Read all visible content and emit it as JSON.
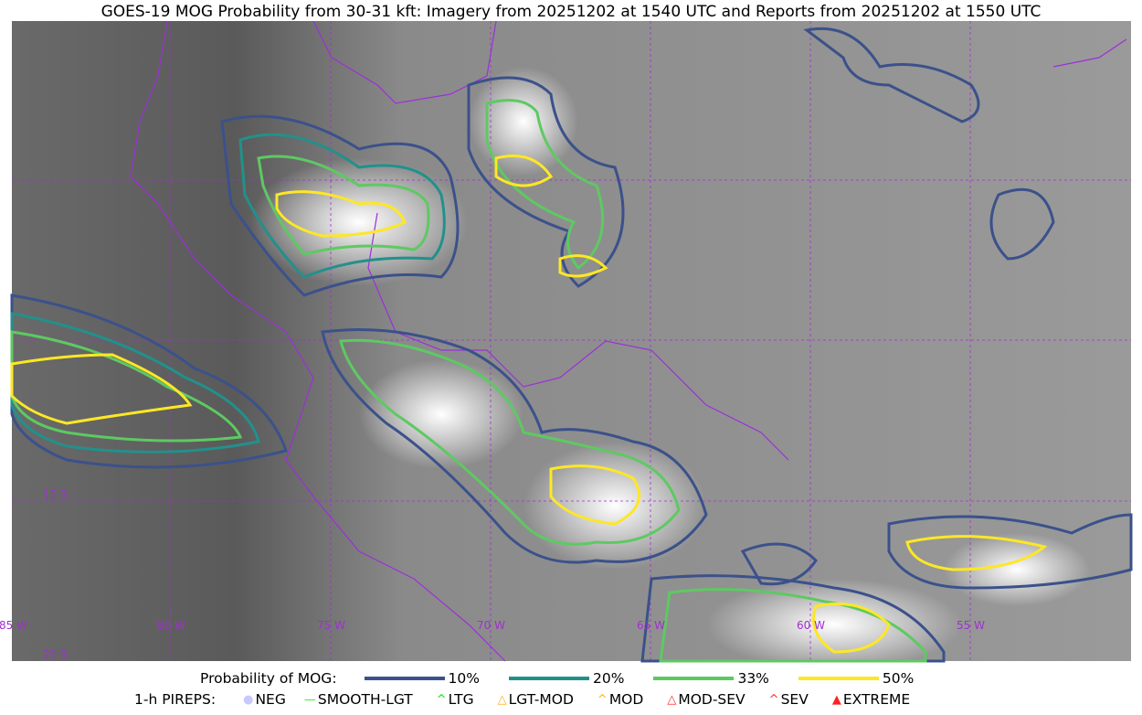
{
  "title": "GOES-19 MOG Probability from 30-31 kft: Imagery from 20251202 at 1540 UTC and Reports from 20251202 at 1550 UTC",
  "map": {
    "longitude_labels": [
      "85 W",
      "80 W",
      "75 W",
      "70 W",
      "65 W",
      "60 W",
      "55 W"
    ],
    "latitude_labels": [
      "15 S",
      "20 S"
    ],
    "gridline_color": "#a030d0",
    "border_color": "#9b30d9"
  },
  "legend": {
    "probability_label": "Probability of MOG:",
    "levels": [
      {
        "label": "10%",
        "color": "#3b518b"
      },
      {
        "label": "20%",
        "color": "#21918c"
      },
      {
        "label": "33%",
        "color": "#5ec962"
      },
      {
        "label": "50%",
        "color": "#fde725"
      }
    ],
    "pireps_label": "1-h PIREPS:",
    "pireps": [
      {
        "label": "NEG",
        "color": "#c8c8ff",
        "icon": "neg-icon"
      },
      {
        "label": "SMOOTH-LGT",
        "color": "#33ee33",
        "icon": "line-icon"
      },
      {
        "label": "LTG",
        "color": "#00ee00",
        "icon": "caret-icon"
      },
      {
        "label": "LGT-MOD",
        "color": "#ffb020",
        "icon": "caret-bar-icon"
      },
      {
        "label": "MOD",
        "color": "#ffb020",
        "icon": "caret-icon"
      },
      {
        "label": "MOD-SEV",
        "color": "#ff3030",
        "icon": "double-caret-bar-icon"
      },
      {
        "label": "SEV",
        "color": "#ff3030",
        "icon": "double-caret-icon"
      },
      {
        "label": "EXTREME",
        "color": "#ff2020",
        "icon": "triangle-icon"
      }
    ]
  }
}
